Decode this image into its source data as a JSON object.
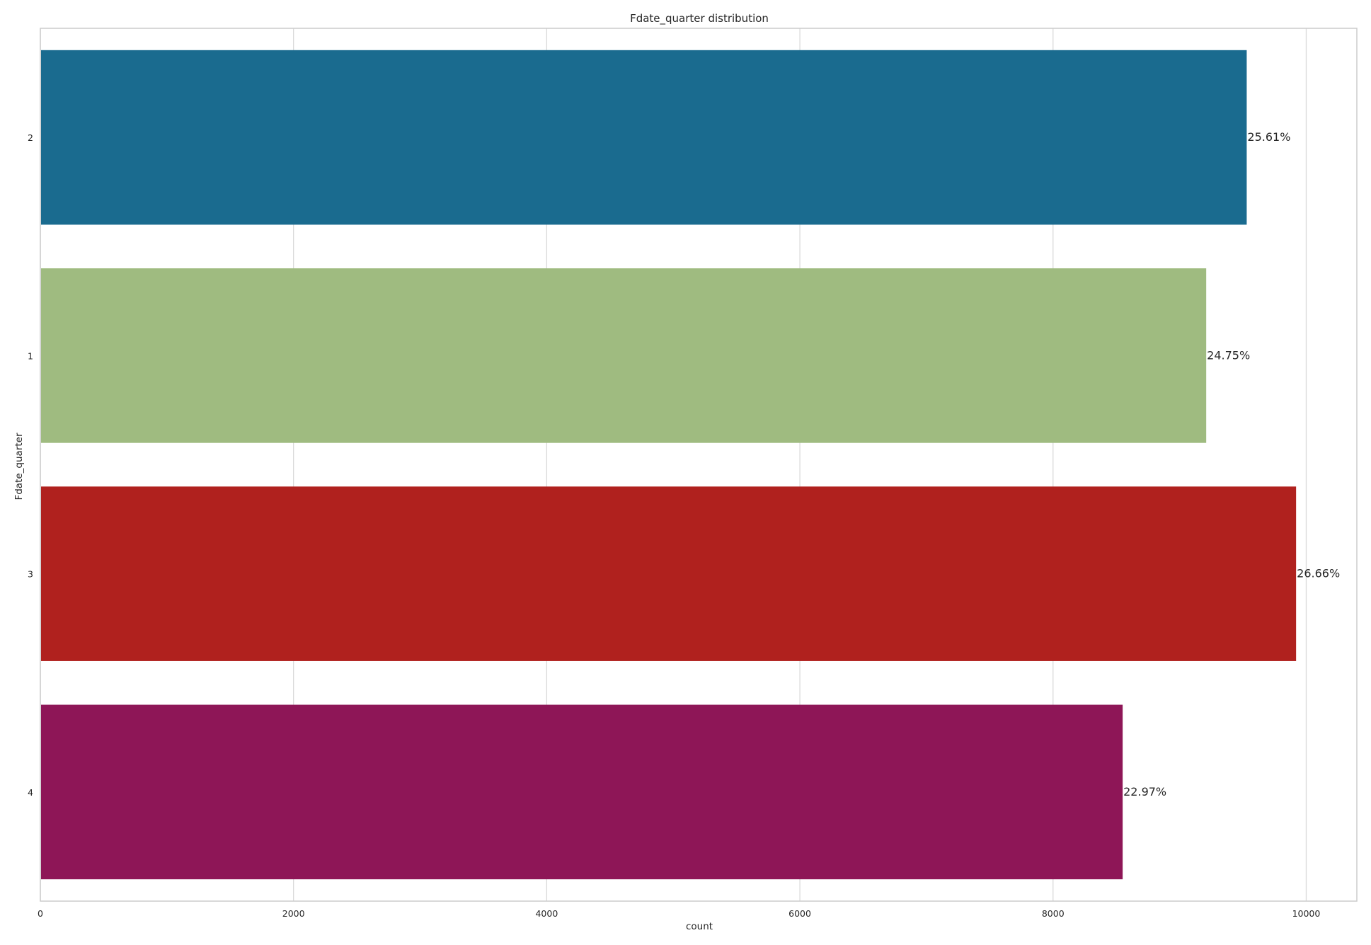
{
  "chart_data": {
    "type": "bar",
    "orientation": "horizontal",
    "title": "Fdate_quarter distribution",
    "xlabel": "count",
    "ylabel": "Fdate_quarter",
    "categories": [
      "2",
      "1",
      "3",
      "4"
    ],
    "values": [
      9530,
      9210,
      9920,
      8550
    ],
    "data_labels": [
      "25.61%",
      "24.75%",
      "26.66%",
      "22.97%"
    ],
    "colors": [
      "#1a6b8f",
      "#9fbb80",
      "#b0211e",
      "#8e1657"
    ],
    "xlim": [
      0,
      10400
    ],
    "xticks": [
      0,
      2000,
      4000,
      6000,
      8000,
      10000
    ],
    "xtick_labels": [
      "0",
      "2000",
      "4000",
      "6000",
      "8000",
      "10000"
    ],
    "grid": true
  }
}
